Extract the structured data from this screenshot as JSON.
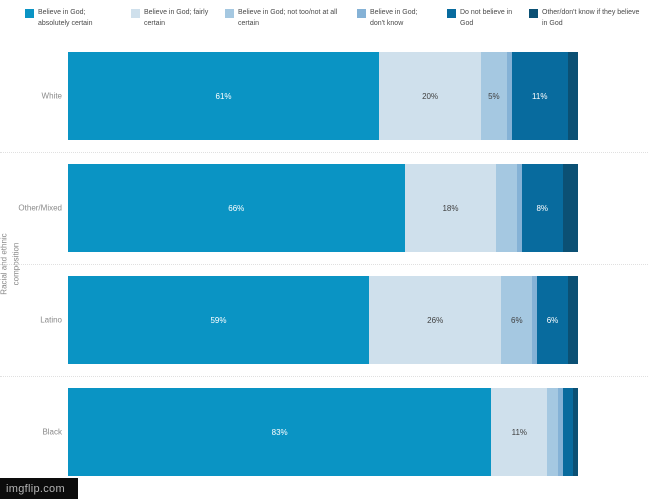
{
  "y_axis": {
    "line1": "Racial and ethnic",
    "line2": "composition"
  },
  "watermark": {
    "text": "imgflip.com"
  },
  "chart_data": {
    "type": "bar",
    "orientation": "horizontal",
    "stacked": true,
    "unit": "%",
    "xlim": [
      0,
      100
    ],
    "grid": false,
    "legend_position": "top",
    "ylabel": "Racial and ethnic composition",
    "label_min_to_show": 5,
    "categories": [
      "White",
      "Other/Mixed",
      "Latino",
      "Black"
    ],
    "series": [
      {
        "name": "Believe in God; absolutely certain",
        "color": "#0a94c4",
        "label_color": "#ffffff",
        "values": [
          61,
          66,
          59,
          83
        ]
      },
      {
        "name": "Believe in God; fairly certain",
        "color": "#cfe0ec",
        "label_color": "#3f3f3f",
        "values": [
          20,
          18,
          26,
          11
        ]
      },
      {
        "name": "Believe in God; not too/not at all certain",
        "color": "#a5c8e1",
        "label_color": "#3f3f3f",
        "values": [
          5,
          4,
          6,
          2
        ]
      },
      {
        "name": "Believe in God; don't know",
        "color": "#85b2d6",
        "label_color": "#3f3f3f",
        "values": [
          1,
          1,
          1,
          1
        ]
      },
      {
        "name": "Do not believe in God",
        "color": "#086b9e",
        "label_color": "#ffffff",
        "values": [
          11,
          8,
          6,
          2
        ]
      },
      {
        "name": "Other/don't know if they believe in God",
        "color": "#0b5074",
        "label_color": "#ffffff",
        "values": [
          2,
          3,
          2,
          1
        ]
      }
    ]
  }
}
